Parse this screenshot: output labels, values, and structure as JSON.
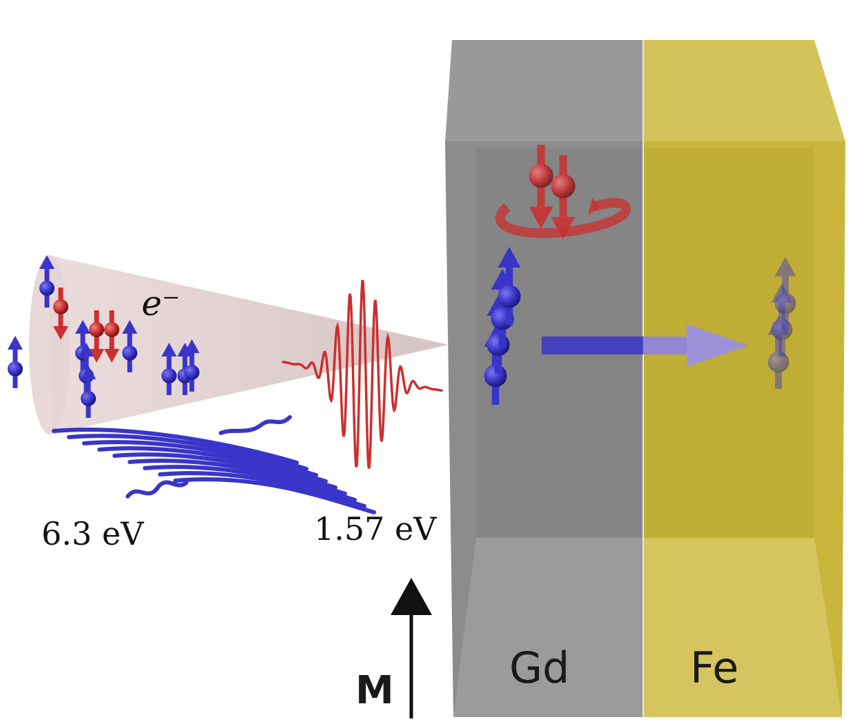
{
  "labels": {
    "electron": "e⁻",
    "probe_energy": "6.3 eV",
    "pump_energy": "1.57 eV",
    "magnetization": "M",
    "layer_left": "Gd",
    "layer_right": "Fe"
  },
  "colors": {
    "spin_up": "#3a35c8",
    "spin_down": "#cc2f2f",
    "gd_layer": "#8c8c8c",
    "fe_layer": "#c9b53c",
    "cone": "#d9c4c4"
  },
  "icons": {
    "magnetization_arrow": "arrow-up-icon",
    "transfer_arrow": "arrow-right-icon"
  }
}
